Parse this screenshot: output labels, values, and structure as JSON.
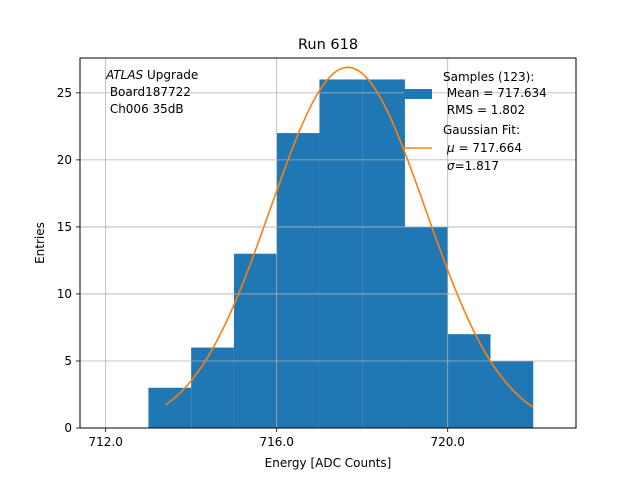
{
  "chart_data": {
    "type": "bar",
    "title": "Run 618",
    "xlabel": "Energy [ADC Counts]",
    "ylabel": "Entries",
    "xlim": [
      711.4,
      723.0
    ],
    "ylim": [
      0,
      27.6
    ],
    "x_ticks": [
      712,
      716,
      720
    ],
    "x_tick_labels": [
      "712.0",
      "716.0",
      "720.0"
    ],
    "y_ticks": [
      0,
      5,
      10,
      15,
      20,
      25
    ],
    "y_tick_labels": [
      "0",
      "5",
      "10",
      "15",
      "20",
      "25"
    ],
    "grid": true,
    "bin_edges": [
      713,
      714,
      715,
      716,
      717,
      718,
      719,
      720,
      721,
      722
    ],
    "values": [
      3,
      6,
      13,
      22,
      26,
      26,
      15,
      7,
      5
    ],
    "fit": {
      "mu": 717.664,
      "sigma": 1.817,
      "amplitude": 26.9,
      "x_range": [
        713.4,
        722.0
      ]
    },
    "annotation": {
      "italic": "ATLAS",
      "rest": " Upgrade",
      "line2": " Board187722",
      "line3": " Ch006 35dB"
    },
    "legend": {
      "placement": "top-right",
      "samples": {
        "line1": "Samples (123):",
        "line2": " Mean = 717.634",
        "line3": " RMS = 1.802"
      },
      "fit": {
        "line1": "Gaussian Fit:",
        "mu_symbol": "μ",
        "mu_rest": " = 717.664",
        "sigma_symbol": "σ",
        "sigma_rest": "=1.817"
      }
    },
    "colors": {
      "bars": "#1f77b4",
      "fit": "#ff7f0e",
      "grid": "#b0b0b0"
    }
  }
}
